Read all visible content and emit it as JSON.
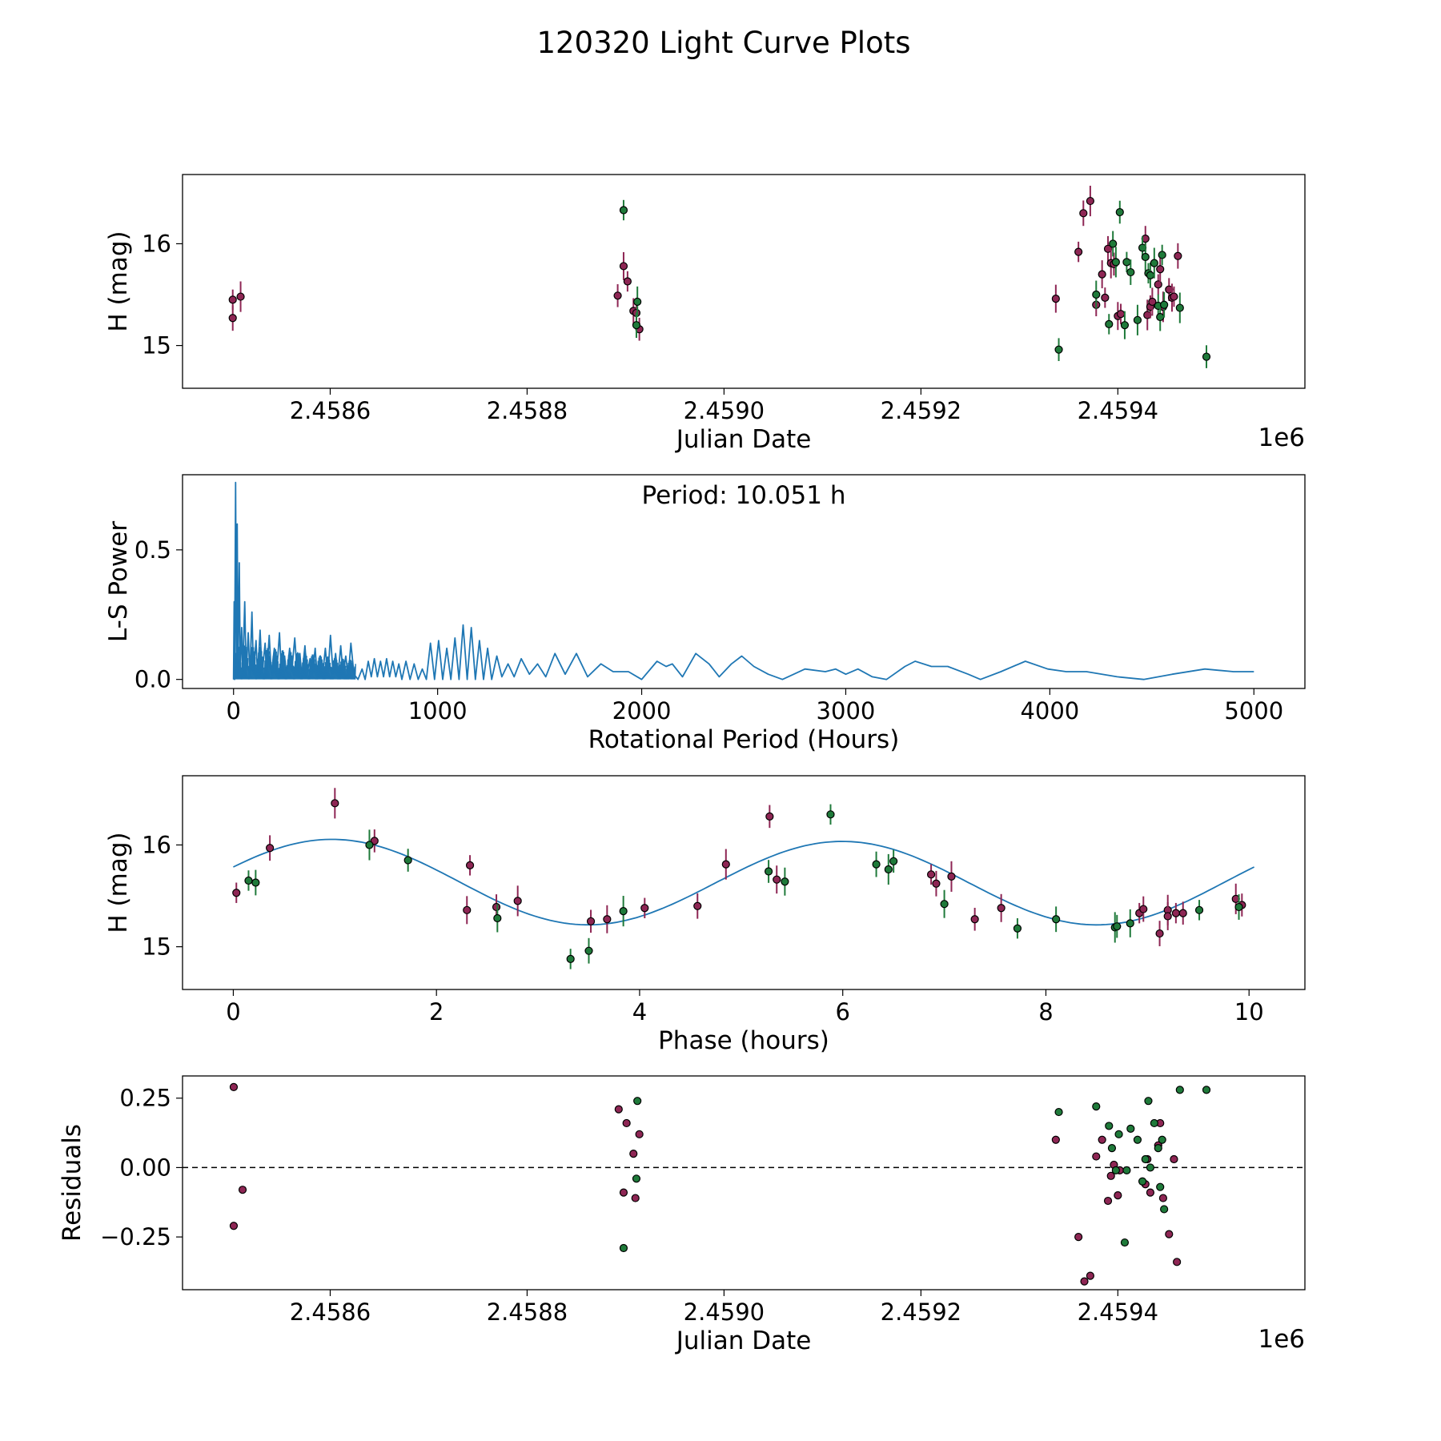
{
  "title": "120320 Light Curve Plots",
  "colors": {
    "r_band": "#8e2654",
    "g_band": "#1f7a3a",
    "line": "#1f77b4",
    "marker_edge": "#000000"
  },
  "chart_data": [
    {
      "type": "scatter",
      "panel": "light-curve",
      "xlabel": "Julian Date",
      "ylabel": "H (mag)",
      "x_offset_label": "1e6",
      "xlim": [
        2.45845,
        2.45959
      ],
      "ylim": [
        14.58,
        16.68
      ],
      "xticks": [
        2.4586,
        2.4588,
        2.459,
        2.4592,
        2.4594
      ],
      "xtick_labels": [
        "2.4586",
        "2.4588",
        "2.4590",
        "2.4592",
        "2.4594"
      ],
      "yticks": [
        15,
        16
      ],
      "ytick_labels": [
        "15",
        "16"
      ],
      "y_inverted": false,
      "series": [
        {
          "color": "r_band",
          "x": [
            2.458501,
            2.458501,
            2.458509,
            2.458892,
            2.458898,
            2.458902,
            2.458908,
            2.458911,
            2.458914,
            2.459337,
            2.45936,
            2.459365,
            2.459372,
            2.459378,
            2.459384,
            2.459387,
            2.45939,
            2.459393,
            2.459396,
            2.4594,
            2.459403,
            2.459428,
            2.45943,
            2.459433,
            2.459435,
            2.459441,
            2.459443,
            2.459446,
            2.459452,
            2.459455,
            2.459457,
            2.459461
          ],
          "y": [
            15.45,
            15.27,
            15.48,
            15.49,
            15.78,
            15.63,
            15.34,
            15.32,
            15.16,
            15.46,
            15.92,
            16.3,
            16.42,
            15.4,
            15.7,
            15.47,
            15.95,
            15.81,
            15.8,
            15.29,
            15.31,
            16.05,
            15.3,
            15.38,
            15.43,
            15.6,
            15.75,
            15.38,
            15.55,
            15.47,
            15.48,
            15.88
          ]
        },
        {
          "color": "g_band",
          "x": [
            2.458898,
            2.458911,
            2.458912,
            2.45934,
            2.459378,
            2.459391,
            2.459395,
            2.459398,
            2.459402,
            2.459407,
            2.459409,
            2.459413,
            2.45942,
            2.459425,
            2.459428,
            2.459431,
            2.459433,
            2.459437,
            2.459441,
            2.459443,
            2.459445,
            2.459447,
            2.459463,
            2.45949
          ],
          "y": [
            16.33,
            15.2,
            15.43,
            14.96,
            15.5,
            15.21,
            16.0,
            15.82,
            16.31,
            15.2,
            15.82,
            15.72,
            15.25,
            15.96,
            15.87,
            15.71,
            15.69,
            15.81,
            15.39,
            15.28,
            15.89,
            15.4,
            15.37,
            14.89
          ]
        }
      ]
    },
    {
      "type": "line",
      "panel": "periodogram",
      "annotation": "Period: 10.051 h",
      "xlabel": "Rotational Period (Hours)",
      "ylabel": "L-S Power",
      "xlim": [
        -250,
        5250
      ],
      "ylim": [
        -0.035,
        0.79
      ],
      "xticks": [
        0,
        1000,
        2000,
        3000,
        4000,
        5000
      ],
      "xtick_labels": [
        "0",
        "1000",
        "2000",
        "3000",
        "4000",
        "5000"
      ],
      "yticks": [
        0.0,
        0.5
      ],
      "ytick_labels": [
        "0.0",
        "0.5"
      ],
      "peaks": [
        [
          0,
          0.0
        ],
        [
          3,
          0.3
        ],
        [
          5,
          0.0
        ],
        [
          10,
          0.76
        ],
        [
          14,
          0.05
        ],
        [
          18,
          0.6
        ],
        [
          22,
          0.04
        ],
        [
          28,
          0.45
        ],
        [
          33,
          0.03
        ],
        [
          40,
          0.2
        ],
        [
          45,
          0.02
        ],
        [
          55,
          0.3
        ],
        [
          62,
          0.02
        ],
        [
          72,
          0.18
        ],
        [
          80,
          0.01
        ],
        [
          90,
          0.26
        ],
        [
          98,
          0.02
        ],
        [
          110,
          0.15
        ],
        [
          118,
          0.01
        ],
        [
          130,
          0.19
        ],
        [
          140,
          0.02
        ],
        [
          155,
          0.14
        ],
        [
          162,
          0.01
        ],
        [
          175,
          0.17
        ],
        [
          185,
          0.02
        ],
        [
          200,
          0.12
        ],
        [
          210,
          0.01
        ],
        [
          225,
          0.18
        ],
        [
          235,
          0.02
        ],
        [
          250,
          0.09
        ],
        [
          260,
          0.01
        ],
        [
          275,
          0.12
        ],
        [
          285,
          0.03
        ],
        [
          300,
          0.16
        ],
        [
          312,
          0.02
        ],
        [
          325,
          0.1
        ],
        [
          335,
          0.01
        ],
        [
          350,
          0.13
        ],
        [
          360,
          0.02
        ],
        [
          375,
          0.08
        ],
        [
          385,
          0.01
        ],
        [
          400,
          0.12
        ],
        [
          410,
          0.01
        ],
        [
          425,
          0.09
        ],
        [
          437,
          0.02
        ],
        [
          450,
          0.12
        ],
        [
          462,
          0.01
        ],
        [
          475,
          0.17
        ],
        [
          488,
          0.02
        ],
        [
          500,
          0.1
        ],
        [
          512,
          0.01
        ],
        [
          525,
          0.13
        ],
        [
          537,
          0.02
        ],
        [
          550,
          0.09
        ],
        [
          562,
          0.01
        ],
        [
          575,
          0.14
        ],
        [
          590,
          0.02
        ],
        [
          610,
          0.0
        ],
        [
          630,
          0.04
        ],
        [
          645,
          0.0
        ],
        [
          660,
          0.07
        ],
        [
          675,
          0.01
        ],
        [
          690,
          0.08
        ],
        [
          705,
          0.01
        ],
        [
          720,
          0.07
        ],
        [
          735,
          0.01
        ],
        [
          750,
          0.08
        ],
        [
          765,
          0.01
        ],
        [
          780,
          0.07
        ],
        [
          795,
          0.01
        ],
        [
          810,
          0.06
        ],
        [
          825,
          0.0
        ],
        [
          845,
          0.07
        ],
        [
          865,
          0.0
        ],
        [
          885,
          0.06
        ],
        [
          905,
          0.0
        ],
        [
          925,
          0.04
        ],
        [
          945,
          0.0
        ],
        [
          965,
          0.14
        ],
        [
          985,
          0.0
        ],
        [
          1005,
          0.15
        ],
        [
          1025,
          0.0
        ],
        [
          1045,
          0.12
        ],
        [
          1065,
          0.0
        ],
        [
          1085,
          0.16
        ],
        [
          1105,
          0.0
        ],
        [
          1125,
          0.21
        ],
        [
          1145,
          0.0
        ],
        [
          1165,
          0.2
        ],
        [
          1185,
          0.0
        ],
        [
          1205,
          0.15
        ],
        [
          1225,
          0.0
        ],
        [
          1245,
          0.12
        ],
        [
          1265,
          0.0
        ],
        [
          1290,
          0.09
        ],
        [
          1315,
          0.01
        ],
        [
          1345,
          0.06
        ],
        [
          1375,
          0.01
        ],
        [
          1410,
          0.08
        ],
        [
          1450,
          0.02
        ],
        [
          1490,
          0.06
        ],
        [
          1530,
          0.01
        ],
        [
          1575,
          0.1
        ],
        [
          1625,
          0.02
        ],
        [
          1680,
          0.1
        ],
        [
          1735,
          0.01
        ],
        [
          1800,
          0.06
        ],
        [
          1860,
          0.03
        ],
        [
          1935,
          0.03
        ],
        [
          2000,
          0.0
        ],
        [
          2075,
          0.07
        ],
        [
          2120,
          0.05
        ],
        [
          2150,
          0.06
        ],
        [
          2200,
          0.01
        ],
        [
          2265,
          0.1
        ],
        [
          2330,
          0.06
        ],
        [
          2380,
          0.01
        ],
        [
          2440,
          0.06
        ],
        [
          2490,
          0.09
        ],
        [
          2550,
          0.05
        ],
        [
          2620,
          0.02
        ],
        [
          2690,
          0.0
        ],
        [
          2745,
          0.02
        ],
        [
          2800,
          0.04
        ],
        [
          2900,
          0.03
        ],
        [
          2950,
          0.04
        ],
        [
          3000,
          0.02
        ],
        [
          3060,
          0.04
        ],
        [
          3130,
          0.01
        ],
        [
          3200,
          0.0
        ],
        [
          3290,
          0.05
        ],
        [
          3340,
          0.07
        ],
        [
          3420,
          0.05
        ],
        [
          3500,
          0.05
        ],
        [
          3600,
          0.02
        ],
        [
          3660,
          0.0
        ],
        [
          3760,
          0.03
        ],
        [
          3880,
          0.07
        ],
        [
          3990,
          0.04
        ],
        [
          4080,
          0.03
        ],
        [
          4180,
          0.03
        ],
        [
          4330,
          0.01
        ],
        [
          4460,
          0.0
        ],
        [
          4600,
          0.02
        ],
        [
          4760,
          0.04
        ],
        [
          4900,
          0.03
        ],
        [
          5000,
          0.03
        ]
      ]
    },
    {
      "type": "scatter",
      "panel": "phase-folded",
      "xlabel": "Phase (hours)",
      "ylabel": "H (mag)",
      "xlim": [
        -0.5,
        10.55
      ],
      "ylim": [
        14.58,
        16.68
      ],
      "xticks": [
        0,
        2,
        4,
        6,
        8,
        10
      ],
      "xtick_labels": [
        "0",
        "2",
        "4",
        "6",
        "8",
        "10"
      ],
      "yticks": [
        15,
        16
      ],
      "ytick_labels": [
        "15",
        "16"
      ],
      "model": {
        "period_h": 10.051,
        "mean": 15.63,
        "amp1": 0.01,
        "amp2": 0.415,
        "phase_offset": 0.97
      },
      "series": [
        {
          "color": "r_band",
          "x": [
            0.03,
            0.36,
            1.0,
            1.39,
            2.3,
            2.33,
            2.59,
            2.8,
            3.52,
            3.68,
            4.05,
            4.57,
            4.85,
            5.28,
            5.35,
            6.87,
            6.92,
            7.07,
            7.3,
            7.56,
            8.92,
            9.12,
            9.2,
            9.35,
            9.2,
            9.28,
            8.96,
            9.87,
            9.93
          ],
          "y": [
            15.53,
            15.97,
            16.41,
            16.04,
            15.36,
            15.8,
            15.39,
            15.45,
            15.25,
            15.27,
            15.38,
            15.4,
            15.81,
            16.28,
            15.66,
            15.71,
            15.62,
            15.69,
            15.27,
            15.38,
            15.33,
            15.13,
            15.36,
            15.33,
            15.3,
            15.33,
            15.37,
            15.47,
            15.41
          ]
        },
        {
          "color": "g_band",
          "x": [
            0.15,
            0.22,
            1.34,
            1.72,
            2.6,
            3.32,
            3.5,
            3.84,
            5.27,
            5.43,
            5.88,
            6.33,
            6.45,
            6.5,
            7.0,
            7.72,
            8.1,
            8.68,
            8.7,
            8.83,
            9.51,
            9.9
          ],
          "y": [
            15.65,
            15.63,
            16.0,
            15.85,
            15.28,
            14.88,
            14.96,
            15.35,
            15.74,
            15.64,
            16.3,
            15.81,
            15.76,
            15.84,
            15.42,
            15.18,
            15.27,
            15.19,
            15.2,
            15.23,
            15.36,
            15.39
          ]
        }
      ]
    },
    {
      "type": "scatter",
      "panel": "residuals",
      "xlabel": "Julian Date",
      "ylabel": "Residuals",
      "x_offset_label": "1e6",
      "xlim": [
        2.45845,
        2.45959
      ],
      "ylim": [
        -0.44,
        0.33
      ],
      "xticks": [
        2.4586,
        2.4588,
        2.459,
        2.4592,
        2.4594
      ],
      "xtick_labels": [
        "2.4586",
        "2.4588",
        "2.4590",
        "2.4592",
        "2.4594"
      ],
      "yticks": [
        0.25,
        0.0,
        -0.25
      ],
      "ytick_labels": [
        "0.25",
        "0.00",
        "−0.25"
      ],
      "reference_line": 0.0,
      "series": [
        {
          "color": "r_band",
          "x": [
            2.458502,
            2.458502,
            2.458511,
            2.458893,
            2.458898,
            2.458901,
            2.458908,
            2.45891,
            2.458914,
            2.459337,
            2.45936,
            2.459366,
            2.459372,
            2.459378,
            2.459384,
            2.45939,
            2.459393,
            2.459396,
            2.4594,
            2.459402,
            2.459428,
            2.45943,
            2.459433,
            2.459441,
            2.459443,
            2.459446,
            2.459452,
            2.459457,
            2.45946
          ],
          "y": [
            0.29,
            -0.21,
            -0.08,
            0.21,
            -0.09,
            0.16,
            0.05,
            -0.11,
            0.12,
            0.1,
            -0.25,
            -0.41,
            -0.39,
            0.04,
            0.1,
            -0.12,
            -0.03,
            0.01,
            -0.1,
            -0.01,
            -0.06,
            0.03,
            -0.09,
            0.08,
            0.16,
            -0.11,
            -0.24,
            0.03,
            -0.34
          ]
        },
        {
          "color": "g_band",
          "x": [
            2.458898,
            2.458911,
            2.458912,
            2.45934,
            2.459378,
            2.459391,
            2.459394,
            2.459398,
            2.459401,
            2.459407,
            2.459409,
            2.459413,
            2.45942,
            2.459425,
            2.459428,
            2.459431,
            2.459433,
            2.459437,
            2.459441,
            2.459443,
            2.459445,
            2.459447,
            2.459463,
            2.45949
          ],
          "y": [
            -0.29,
            -0.04,
            0.24,
            0.2,
            0.22,
            0.15,
            0.07,
            -0.01,
            0.12,
            -0.27,
            -0.01,
            0.14,
            0.1,
            -0.05,
            0.03,
            0.24,
            0.0,
            0.16,
            0.07,
            -0.07,
            0.1,
            -0.15,
            0.28,
            0.28
          ]
        }
      ]
    }
  ]
}
